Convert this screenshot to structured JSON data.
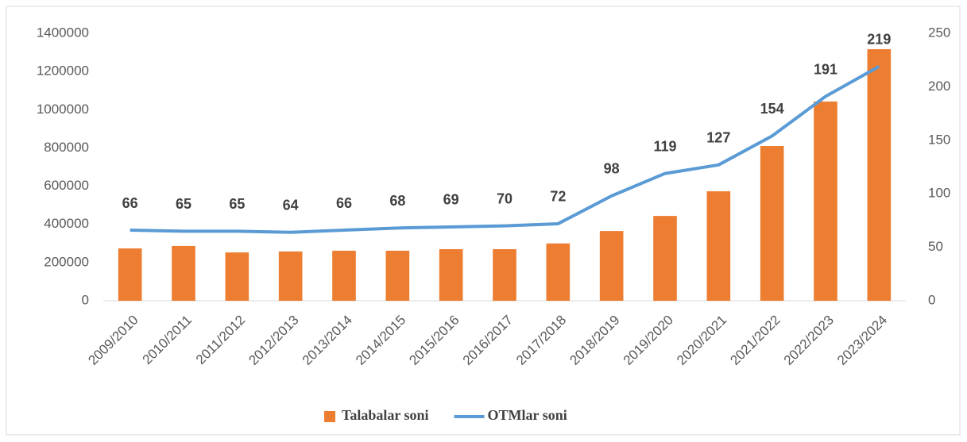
{
  "chart_data": {
    "type": "bar_line",
    "categories": [
      "2009/2010",
      "2010/2011",
      "2011/2012",
      "2012/2013",
      "2013/2014",
      "2014/2015",
      "2015/2016",
      "2016/2017",
      "2017/2018",
      "2018/2019",
      "2019/2020",
      "2020/2021",
      "2021/2022",
      "2022/2023",
      "2023/2024"
    ],
    "series": [
      {
        "name": "Talabalar soni",
        "color": "#ed7d31",
        "type": "bar",
        "values": [
          274000,
          287000,
          253000,
          258000,
          262000,
          262000,
          270000,
          270000,
          300000,
          365000,
          444000,
          573000,
          810000,
          1043000,
          1317000
        ]
      },
      {
        "name": "OTMlar soni",
        "color": "#5b9bd5",
        "type": "line",
        "axis": "y2",
        "values": [
          66,
          65,
          65,
          64,
          66,
          68,
          69,
          70,
          72,
          98,
          119,
          127,
          154,
          191,
          219
        ]
      }
    ],
    "ylim": [
      0,
      1400000
    ],
    "yticks": [
      0,
      200000,
      400000,
      600000,
      800000,
      1000000,
      1200000,
      1400000
    ],
    "y2lim": [
      0,
      250
    ],
    "y2ticks": [
      0,
      50,
      100,
      150,
      200,
      250
    ],
    "legend": "bottom"
  }
}
